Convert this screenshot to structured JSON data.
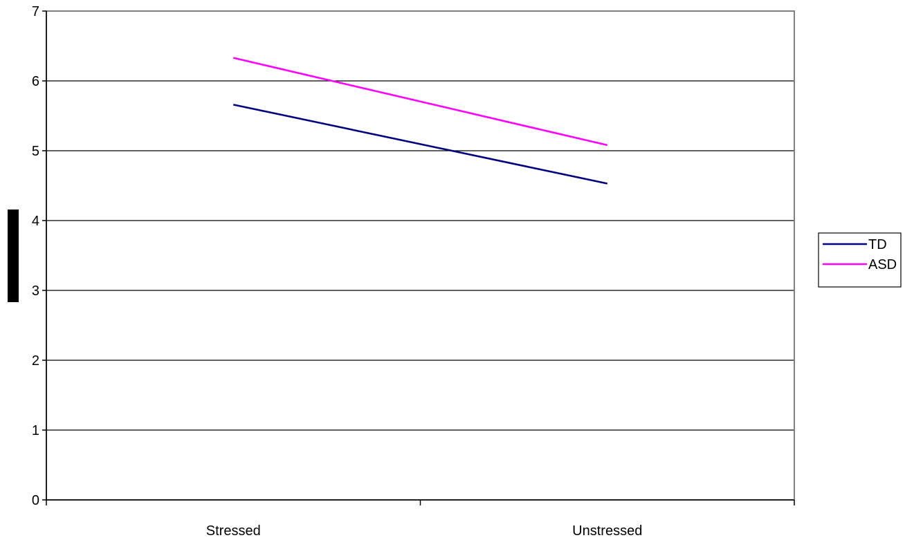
{
  "chart_data": {
    "type": "line",
    "categories": [
      "Stressed",
      "Unstressed"
    ],
    "series": [
      {
        "name": "TD",
        "values": [
          5.66,
          4.53
        ],
        "color": "#000080"
      },
      {
        "name": "ASD",
        "values": [
          6.33,
          5.08
        ],
        "color": "#ff00ff"
      }
    ],
    "ylim": [
      0,
      7
    ],
    "yticks": [
      0,
      1,
      2,
      3,
      4,
      5,
      6,
      7
    ],
    "ytick_labels": [
      "0",
      "1",
      "2",
      "3",
      "4",
      "5",
      "6",
      "7"
    ],
    "grid": true,
    "legend_position": "right",
    "ylabel_redacted": true
  }
}
